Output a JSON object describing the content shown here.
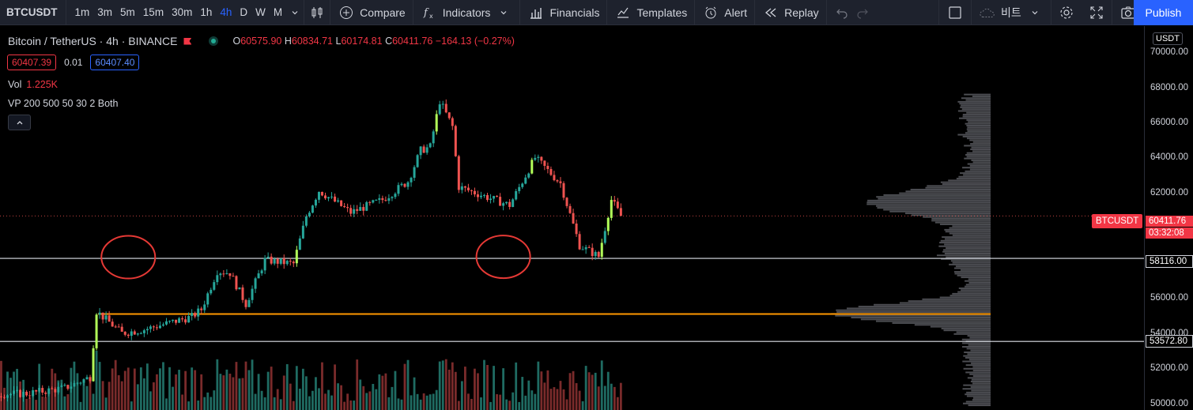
{
  "toolbar": {
    "symbol": "BTCUSDT",
    "intervals": [
      "1m",
      "3m",
      "5m",
      "15m",
      "30m",
      "1h",
      "4h",
      "D",
      "W",
      "M"
    ],
    "active_interval": "4h",
    "compare_label": "Compare",
    "indicators_label": "Indicators",
    "financials_label": "Financials",
    "templates_label": "Templates",
    "alert_label": "Alert",
    "replay_label": "Replay",
    "layout_name": "비트",
    "publish_label": "Publish"
  },
  "legend": {
    "title": "Bitcoin / TetherUS · 4h · BINANCE",
    "open_key": "O",
    "open": "60575.90",
    "high_key": "H",
    "high": "60834.71",
    "low_key": "L",
    "low": "60174.81",
    "close_key": "C",
    "close": "60411.76",
    "change": "−164.13 (−0.27%)",
    "bid": "60407.39",
    "spread": "0.01",
    "ask": "60407.40",
    "vol_label": "Vol",
    "vol_value": "1.225K",
    "vp_label": "VP 200 500 50 30 2 Both"
  },
  "axis": {
    "currency": "USDT",
    "ticks": [
      "70000.00",
      "68000.00",
      "66000.00",
      "64000.00",
      "62000.00",
      "56000.00",
      "54000.00",
      "52000.00",
      "50000.00"
    ],
    "line_labels": [
      "58116.00",
      "53572.80"
    ],
    "last_price": "60411.76",
    "countdown": "03:32:08",
    "symbol_tag": "BTCUSDT"
  },
  "colors": {
    "up": "#26a69a",
    "down": "#ef5350",
    "highlight_up": "#b2ff59",
    "orange_line": "#ff9800",
    "circle": "#e53935",
    "accent": "#2962ff"
  },
  "chart_data": {
    "type": "candlestick",
    "timeframe": "4h",
    "y_range": [
      49800,
      70800
    ],
    "horizontal_lines": [
      58116.0,
      53572.8
    ],
    "orange_line": 55050,
    "circles": [
      {
        "center_price": 58160,
        "candle_index": 120
      },
      {
        "center_price": 58180,
        "candle_index": 238
      }
    ]
  }
}
